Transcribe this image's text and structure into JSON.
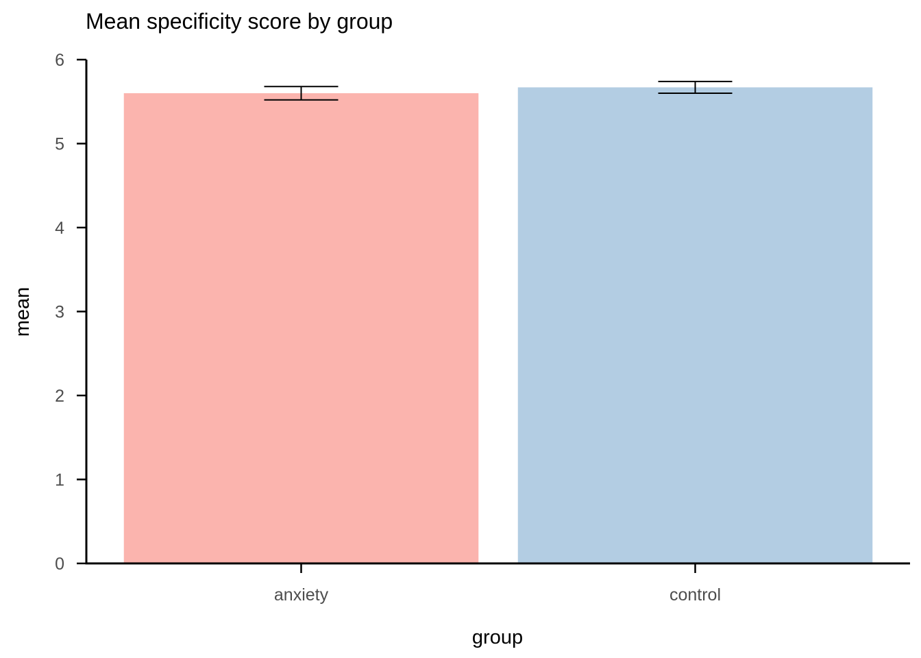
{
  "chart_data": {
    "type": "bar",
    "title": "Mean specificity score by group",
    "xlabel": "group",
    "ylabel": "mean",
    "categories": [
      "anxiety",
      "control"
    ],
    "values": [
      5.6,
      5.67
    ],
    "error_bars": [
      {
        "lower": 5.52,
        "upper": 5.68
      },
      {
        "lower": 5.6,
        "upper": 5.74
      }
    ],
    "colors": [
      "#FBB4AE",
      "#B3CDE3"
    ],
    "ylim": [
      0,
      6
    ],
    "yticks": [
      0,
      1,
      2,
      3,
      4,
      5,
      6
    ],
    "grid": false,
    "legend": "none"
  }
}
